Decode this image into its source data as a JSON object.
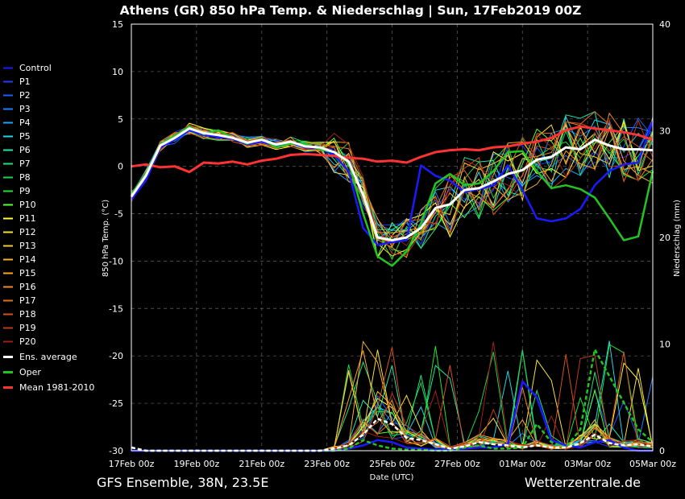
{
  "chart_data": {
    "type": "line",
    "title": "Athens  (GR)  850 hPa Temp. & Niederschlag | Sun, 17Feb2019 00Z",
    "footer_left": "GFS Ensemble, 38N, 23.5E",
    "footer_right": "Wetterzentrale.de",
    "xlabel": "Date (UTC)",
    "ylabel_left": "850 hPa Temp. (°C)",
    "ylabel_right": "Niederschlag (mm)",
    "ylim_left": [
      -30,
      15
    ],
    "ylim_right": [
      0,
      40
    ],
    "grid": true,
    "legend_position": "left",
    "x_ticks": [
      "17Feb 00z",
      "19Feb 00z",
      "21Feb 00z",
      "23Feb 00z",
      "25Feb 00z",
      "27Feb 00z",
      "01Mar 00z",
      "03Mar 00z",
      "05Mar 00z"
    ],
    "y_ticks_left": [
      15,
      10,
      5,
      0,
      -5,
      -10,
      -15,
      -20,
      -25,
      -30
    ],
    "y_ticks_right": [
      40,
      30,
      20,
      10,
      0
    ],
    "series": [
      {
        "name": "Control",
        "color": "#1a1aff"
      },
      {
        "name": "P1",
        "color": "#1f3cff"
      },
      {
        "name": "P2",
        "color": "#1f5cff"
      },
      {
        "name": "P3",
        "color": "#1e80ff"
      },
      {
        "name": "P4",
        "color": "#1aa5ff"
      },
      {
        "name": "P5",
        "color": "#1fd5e6"
      },
      {
        "name": "P6",
        "color": "#1fe6b0"
      },
      {
        "name": "P7",
        "color": "#1fe080"
      },
      {
        "name": "P8",
        "color": "#22d050"
      },
      {
        "name": "P9",
        "color": "#22e030"
      },
      {
        "name": "P10",
        "color": "#55ff33"
      },
      {
        "name": "P11",
        "color": "#ffff33"
      },
      {
        "name": "P12",
        "color": "#f5e03a"
      },
      {
        "name": "P13",
        "color": "#f5c83a"
      },
      {
        "name": "P14",
        "color": "#f5b030"
      },
      {
        "name": "P15",
        "color": "#ffa520"
      },
      {
        "name": "P16",
        "color": "#f08a28"
      },
      {
        "name": "P17",
        "color": "#e07020"
      },
      {
        "name": "P18",
        "color": "#d55020"
      },
      {
        "name": "P19",
        "color": "#c03a1a"
      },
      {
        "name": "P20",
        "color": "#a02015"
      },
      {
        "name": "Ens. average",
        "color": "#ffffff"
      },
      {
        "name": "Oper",
        "color": "#22c422"
      },
      {
        "name": "Mean 1981-2010",
        "color": "#ff3333"
      }
    ],
    "ens_average_temp": [
      -3.2,
      -1.0,
      2.2,
      3.0,
      4.0,
      3.5,
      3.3,
      3.0,
      2.5,
      2.8,
      2.3,
      2.6,
      2.1,
      2.0,
      1.5,
      0.5,
      -3.0,
      -7.5,
      -7.8,
      -7.5,
      -6.5,
      -4.4,
      -4.0,
      -2.5,
      -2.3,
      -1.6,
      -0.8,
      -0.4,
      0.7,
      1.0,
      2.0,
      1.8,
      2.8,
      2.2,
      1.8,
      1.8,
      1.7
    ],
    "oper_temp": [
      -3.0,
      -0.8,
      2.3,
      3.2,
      4.2,
      3.4,
      3.8,
      3.0,
      2.4,
      2.9,
      2.0,
      2.4,
      2.4,
      1.8,
      1.5,
      0.4,
      -5.0,
      -9.5,
      -10.5,
      -9.0,
      -6.0,
      -1.8,
      -0.8,
      -2.0,
      -1.8,
      -0.5,
      1.5,
      1.6,
      -0.5,
      -2.3,
      -2.0,
      -2.4,
      -3.3,
      -5.5,
      -7.8,
      -7.4,
      -0.5
    ],
    "control_temp": [
      -3.5,
      -1.5,
      2.0,
      2.8,
      3.8,
      3.3,
      3.1,
      2.9,
      2.3,
      2.6,
      2.1,
      2.5,
      2.0,
      1.9,
      1.2,
      -0.5,
      -6.5,
      -8.3,
      -8.0,
      -7.8,
      0.1,
      -1.0,
      -1.5,
      -2.7,
      -2.4,
      -2.0,
      0.1,
      -2.5,
      -5.5,
      -5.8,
      -5.5,
      -4.5,
      -2.0,
      -0.5,
      0.2,
      0.4,
      4.8
    ],
    "mean_climate_temp": [
      0.0,
      0.2,
      -0.1,
      0.0,
      -0.6,
      0.4,
      0.3,
      0.5,
      0.2,
      0.6,
      0.8,
      1.2,
      1.3,
      1.2,
      1.1,
      0.9,
      0.8,
      0.5,
      0.6,
      0.4,
      1.0,
      1.5,
      1.7,
      1.8,
      1.7,
      2.0,
      2.1,
      2.4,
      2.6,
      3.0,
      3.8,
      4.2,
      4.0,
      3.8,
      3.6,
      3.3,
      2.8
    ],
    "ens_average_precip": [
      0.3,
      0.0,
      0.0,
      0.0,
      0.0,
      0.0,
      0.0,
      0.0,
      0.0,
      0.0,
      0.0,
      0.0,
      0.0,
      0.0,
      0.2,
      0.5,
      1.5,
      3.0,
      2.5,
      1.2,
      1.0,
      0.6,
      0.2,
      0.4,
      0.8,
      0.6,
      0.5,
      0.3,
      0.5,
      0.3,
      0.3,
      0.7,
      1.5,
      0.7,
      0.5,
      0.6,
      0.4
    ],
    "oper_precip": [
      0.3,
      0.0,
      0.0,
      0.0,
      0.0,
      0.0,
      0.0,
      0.0,
      0.0,
      0.0,
      0.0,
      0.0,
      0.0,
      0.0,
      0.0,
      0.2,
      1.0,
      0.5,
      0.2,
      0.1,
      0.1,
      0.0,
      0.0,
      0.3,
      0.5,
      0.2,
      0.2,
      0.3,
      2.5,
      0.8,
      0.3,
      2.0,
      9.5,
      7.0,
      4.5,
      2.0,
      0.8
    ],
    "control_precip": [
      0.0,
      0.0,
      0.0,
      0.0,
      0.0,
      0.0,
      0.0,
      0.0,
      0.0,
      0.0,
      0.0,
      0.0,
      0.0,
      0.0,
      0.0,
      0.2,
      0.5,
      1.0,
      0.8,
      0.3,
      0.2,
      0.1,
      0.1,
      0.2,
      0.3,
      0.3,
      0.6,
      6.5,
      5.0,
      1.0,
      0.5,
      0.3,
      0.8,
      1.0,
      0.3,
      0.0,
      0.0
    ]
  }
}
